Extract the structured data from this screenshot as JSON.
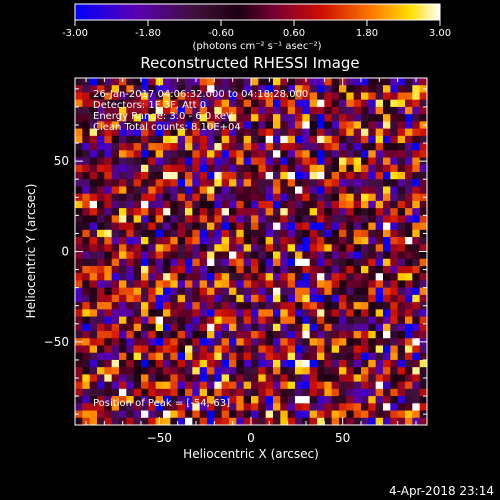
{
  "chart_data": {
    "type": "heatmap",
    "title": "Reconstructed RHESSI Image",
    "xlabel": "Heliocentric X (arcsec)",
    "ylabel": "Heliocentric Y (arcsec)",
    "xlim": [
      -96,
      96
    ],
    "ylim": [
      -96,
      96
    ],
    "x_ticks": [
      -50,
      0,
      50
    ],
    "y_ticks": [
      -50,
      0,
      50
    ],
    "colorbar": {
      "range": [
        -3.0,
        3.0
      ],
      "tick_labels": [
        "-3.00",
        "-1.80",
        "-0.60",
        "0.60",
        "1.80",
        "3.00"
      ],
      "units": "(photons cm⁻² s⁻¹ asec⁻²)"
    },
    "annotations": [
      "26-Jan-2017 04:06:32.000 to 04:18:28.000",
      "Detectors: 1F 3F, Att 0",
      "Energy Range: 3.0 - 6.0 keV",
      "Clean    Total counts: 8.10E+04"
    ],
    "peak_label": "Position of Peak = [-54,-63]",
    "timestamp": "4-Apr-2018 23:14",
    "grid_size": [
      48,
      48
    ],
    "pattern_note": "noise-dominated image with vertical streaks of alternating bright (yellow/orange) and dark (purple/blue) pixels"
  }
}
